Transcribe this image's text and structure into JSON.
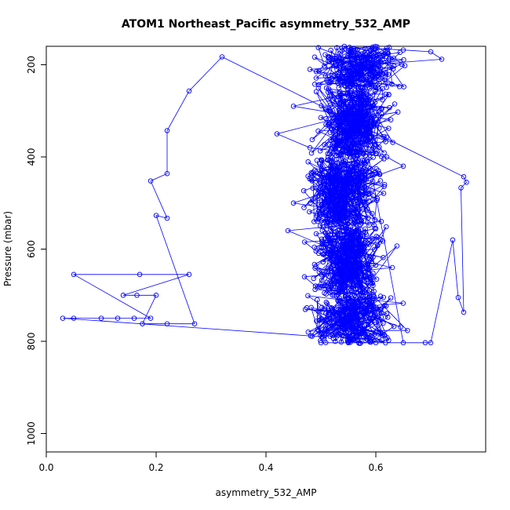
{
  "chart_data": {
    "type": "scatter",
    "title": "ATOM1 Northeast_Pacific asymmetry_532_AMP",
    "xlabel": "asymmetry_532_AMP",
    "ylabel": "Pressure (mbar)",
    "xlim": [
      0.0,
      0.8
    ],
    "ylim": [
      1040,
      160
    ],
    "y_reversed": true,
    "x_ticks": [
      0.0,
      0.2,
      0.4,
      0.6
    ],
    "y_ticks": [
      200,
      400,
      600,
      800,
      1000
    ],
    "x_tick_labels": [
      "0.0",
      "0.2",
      "0.4",
      "0.6"
    ],
    "y_tick_labels": [
      "200",
      "400",
      "600",
      "800",
      "1000"
    ],
    "grid": false,
    "legend": "none",
    "series": [
      {
        "color": "#0000ff",
        "marker": "open-circle",
        "line": true,
        "profile_segments": [
          {
            "p_range": [
              160,
              250
            ],
            "center": 0.57,
            "spread": 0.07
          },
          {
            "p_range": [
              250,
              400
            ],
            "center": 0.56,
            "spread": 0.06
          },
          {
            "p_range": [
              400,
              550
            ],
            "center": 0.54,
            "spread": 0.06
          },
          {
            "p_range": [
              550,
              700
            ],
            "center": 0.55,
            "spread": 0.06
          },
          {
            "p_range": [
              700,
              805
            ],
            "center": 0.56,
            "spread": 0.07
          }
        ],
        "points": [
          [
            0.03,
            750
          ],
          [
            0.05,
            750
          ],
          [
            0.1,
            750
          ],
          [
            0.13,
            750
          ],
          [
            0.16,
            750
          ],
          [
            0.19,
            750
          ],
          [
            0.05,
            655
          ],
          [
            0.17,
            655
          ],
          [
            0.26,
            655
          ],
          [
            0.14,
            700
          ],
          [
            0.165,
            700
          ],
          [
            0.2,
            700
          ],
          [
            0.175,
            762
          ],
          [
            0.22,
            762
          ],
          [
            0.27,
            762
          ],
          [
            0.2,
            527
          ],
          [
            0.22,
            533
          ],
          [
            0.19,
            452
          ],
          [
            0.22,
            436
          ],
          [
            0.22,
            343
          ],
          [
            0.26,
            257
          ],
          [
            0.32,
            183
          ],
          [
            0.76,
            443
          ],
          [
            0.765,
            455
          ],
          [
            0.755,
            467
          ],
          [
            0.76,
            737
          ],
          [
            0.75,
            705
          ],
          [
            0.74,
            580
          ],
          [
            0.7,
            803
          ],
          [
            0.69,
            803
          ],
          [
            0.5,
            803
          ],
          [
            0.55,
            803
          ],
          [
            0.6,
            803
          ],
          [
            0.65,
            803
          ],
          [
            0.55,
            165
          ],
          [
            0.6,
            165
          ],
          [
            0.65,
            168
          ],
          [
            0.7,
            172
          ],
          [
            0.72,
            188
          ],
          [
            0.48,
            210
          ],
          [
            0.52,
            230
          ],
          [
            0.6,
            250
          ],
          [
            0.45,
            290
          ],
          [
            0.55,
            310
          ],
          [
            0.42,
            350
          ],
          [
            0.48,
            380
          ],
          [
            0.62,
            400
          ],
          [
            0.65,
            420
          ],
          [
            0.58,
            450
          ],
          [
            0.5,
            480
          ],
          [
            0.45,
            500
          ],
          [
            0.56,
            520
          ],
          [
            0.61,
            540
          ],
          [
            0.44,
            560
          ],
          [
            0.52,
            600
          ],
          [
            0.55,
            620
          ],
          [
            0.63,
            640
          ],
          [
            0.47,
            660
          ],
          [
            0.49,
            680
          ],
          [
            0.57,
            700
          ],
          [
            0.59,
            720
          ],
          [
            0.62,
            740
          ],
          [
            0.54,
            760
          ],
          [
            0.6,
            780
          ]
        ]
      }
    ]
  }
}
